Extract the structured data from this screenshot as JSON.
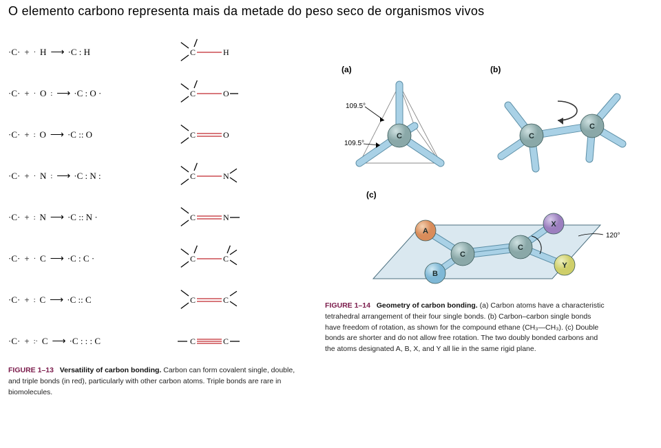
{
  "title": "O elemento carbono representa mais da metade do peso seco de organismos vivos",
  "colors": {
    "bond_red": "#c1272d",
    "bond_black": "#000000",
    "atom_carbon_body": "#8aa8a8",
    "atom_carbon_hi": "#cfe1e1",
    "atom_a_body": "#d98c5a",
    "atom_a_hi": "#f3d2b3",
    "atom_b_body": "#7fb8d6",
    "atom_b_hi": "#d0e9f3",
    "atom_x_body": "#9c7fbf",
    "atom_x_hi": "#d8cceb",
    "atom_y_body": "#cfcf6a",
    "atom_y_hi": "#eef0c0",
    "bond_tube": "#a9d1e6",
    "bond_tube_edge": "#5b8ea6",
    "plane_fill": "#c2d9e6",
    "plane_edge": "#4a6e7e",
    "callout_text": "#000000",
    "rot_arrow": "#333333"
  },
  "left_rows": [
    {
      "partner": "H",
      "partner_dots_before": "·",
      "bond_dots": ":",
      "after_dots": "",
      "struct": "CH",
      "partner_after_dots": ""
    },
    {
      "partner": "O",
      "partner_dots_before": "·",
      "bond_dots": ":",
      "after_dots": "·",
      "struct": "CO1",
      "partner_after_dots": ":"
    },
    {
      "partner": "O",
      "partner_dots_before": ":",
      "bond_dots": "::",
      "after_dots": "",
      "struct": "CO2",
      "partner_after_dots": ""
    },
    {
      "partner": "N",
      "partner_dots_before": "·",
      "bond_dots": ":",
      "after_dots": ":",
      "struct": "CN1",
      "partner_after_dots": ":"
    },
    {
      "partner": "N",
      "partner_dots_before": ":",
      "bond_dots": "::",
      "after_dots": "·",
      "struct": "CN2",
      "partner_after_dots": ""
    },
    {
      "partner": "C",
      "partner_dots_before": "·",
      "bond_dots": ":",
      "after_dots": "·",
      "struct": "CC1",
      "partner_after_dots": ""
    },
    {
      "partner": "C",
      "partner_dots_before": ":",
      "bond_dots": "::",
      "after_dots": "",
      "struct": "CC2",
      "partner_after_dots": ""
    },
    {
      "partner": "C",
      "partner_dots_before": ":·",
      "bond_dots": ": : :",
      "after_dots": "",
      "struct": "CC3",
      "partner_after_dots": ""
    }
  ],
  "fig13": {
    "label": "FIGURE 1–13",
    "title": "Versatility of carbon bonding.",
    "body": "Carbon can form covalent single, double, and triple bonds (in red), particularly with other carbon atoms. Triple bonds are rare in biomolecules."
  },
  "fig14": {
    "label": "FIGURE 1–14",
    "title": "Geometry of carbon bonding.",
    "body_a": "(a) Carbon atoms have a characteristic tetrahedral arrangement of their four single bonds.",
    "body_b": "(b) Carbon–carbon single bonds have freedom of rotation, as shown for the compound ethane (CH₃—CH₃).",
    "body_c": "(c) Double bonds are shorter and do not allow free rotation. The two doubly bonded carbons and the atoms designated A, B, X, and Y all lie in the same rigid plane."
  },
  "panel_labels": {
    "a": "(a)",
    "b": "(b)",
    "c": "(c)"
  },
  "atom_labels": {
    "C": "C",
    "A": "A",
    "B": "B",
    "X": "X",
    "Y": "Y"
  },
  "angles": {
    "tet": "109.5°",
    "trig": "120°"
  }
}
